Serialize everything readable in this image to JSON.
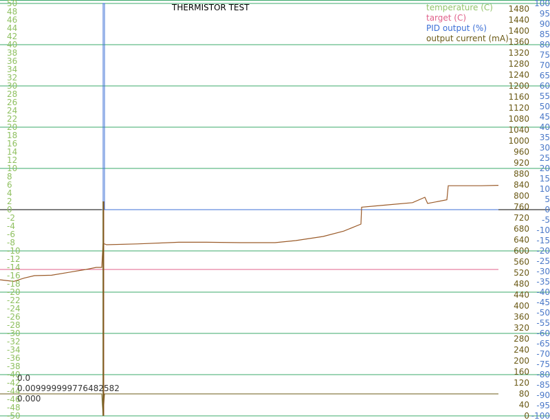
{
  "chart_data": {
    "type": "line",
    "title": "THERMISTOR TEST",
    "legend_position": "top-right",
    "colors": {
      "temperature": "#92c36a",
      "target": "#e0608a",
      "pid": "#3b6fd6",
      "current": "#6b5a16",
      "grid": "#3aa86a",
      "zero": "#000000",
      "trace": "#9a5a28",
      "tick_left": "#8fc060",
      "tick_mid": "#6b5a16",
      "tick_right": "#4a78c8"
    },
    "axes": {
      "left": {
        "label": "temperature (C)",
        "ylim": [
          -50,
          50
        ],
        "ticks": [
          50,
          48,
          46,
          44,
          42,
          40,
          38,
          36,
          34,
          32,
          30,
          28,
          26,
          24,
          22,
          20,
          18,
          16,
          14,
          12,
          10,
          8,
          6,
          4,
          2,
          0,
          -2,
          -4,
          -6,
          -8,
          -10,
          -12,
          -14,
          -16,
          -18,
          -20,
          -22,
          -24,
          -26,
          -28,
          -30,
          -32,
          -34,
          -36,
          -38,
          -40,
          -42,
          -44,
          -46,
          -48,
          -50
        ]
      },
      "current": {
        "label": "output current (mA)",
        "ylim": [
          0,
          1500
        ],
        "ticks": [
          1480,
          1440,
          1400,
          1360,
          1320,
          1280,
          1240,
          1200,
          1160,
          1120,
          1080,
          1040,
          1000,
          960,
          920,
          880,
          840,
          800,
          760,
          720,
          680,
          640,
          600,
          560,
          520,
          480,
          440,
          400,
          360,
          320,
          280,
          240,
          200,
          160,
          120,
          80,
          40,
          0
        ]
      },
      "right": {
        "label": "PID output (%)",
        "ylim": [
          -100,
          100
        ],
        "ticks": [
          100,
          95,
          90,
          85,
          80,
          75,
          70,
          65,
          60,
          55,
          50,
          45,
          40,
          35,
          30,
          25,
          20,
          15,
          10,
          5,
          0,
          -5,
          -10,
          -15,
          -20,
          -25,
          -30,
          -35,
          -40,
          -45,
          -50,
          -55,
          -60,
          -65,
          -70,
          -75,
          -80,
          -85,
          -90,
          -95,
          -100
        ]
      }
    },
    "series": [
      {
        "name": "temperature (C)",
        "axis": "left",
        "t": [
          0,
          20,
          35,
          50,
          75,
          100,
          125,
          140,
          148,
          150,
          152,
          155,
          200,
          260,
          300,
          350,
          400,
          430,
          470,
          500,
          525,
          526,
          560,
          600,
          618,
          622,
          650,
          652,
          700,
          725
        ],
        "values": [
          -17,
          -17.4,
          -16.6,
          -16,
          -15.9,
          -15.2,
          -14.5,
          -14,
          -14,
          -8.3,
          -8.3,
          -8.5,
          -8.3,
          -7.9,
          -7.9,
          -8,
          -8,
          -7.5,
          -6.5,
          -5.2,
          -3.5,
          0.6,
          1.1,
          1.7,
          3,
          1.5,
          2.4,
          5.8,
          5.8,
          5.9
        ]
      },
      {
        "name": "target (C)",
        "axis": "left",
        "t": [
          0,
          725
        ],
        "values": [
          -14.5,
          -14.5
        ]
      },
      {
        "name": "PID output (%)",
        "axis": "right",
        "t": [
          148,
          150,
          150,
          152,
          152,
          725
        ],
        "values": [
          0,
          0,
          100,
          100,
          0,
          0
        ]
      },
      {
        "name": "output current (mA)",
        "axis": "current",
        "t": [
          0,
          148,
          150,
          152,
          725
        ],
        "values": [
          80,
          80,
          0,
          80,
          80
        ]
      }
    ],
    "readouts": [
      "0.0",
      "0.009999999776482582",
      "0.000"
    ]
  }
}
